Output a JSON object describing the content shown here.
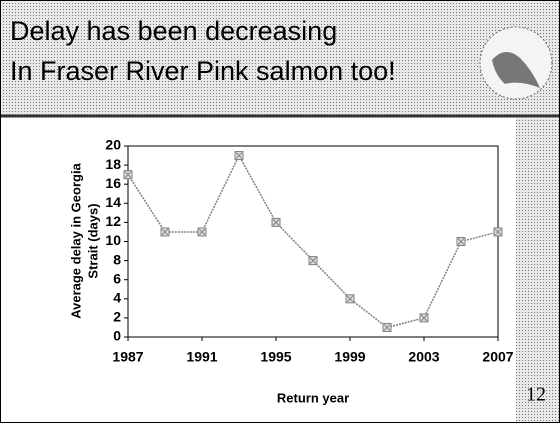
{
  "slide": {
    "title": [
      "Delay has been decreasing",
      "In Fraser River Pink salmon too!"
    ],
    "number": 12
  },
  "chart_data": {
    "type": "line",
    "ylabel": [
      "Average delay in Georgia",
      "Strait (days)"
    ],
    "xlabel": "Return year",
    "x": [
      1987,
      1989,
      1991,
      1993,
      1995,
      1997,
      1999,
      2001,
      2003,
      2005,
      2007
    ],
    "series": [
      {
        "name": "Average delay",
        "color": "#808080",
        "values": [
          17,
          11,
          11,
          19,
          12,
          8,
          4,
          1,
          2,
          10,
          11
        ]
      }
    ],
    "xlim": [
      1987,
      2007
    ],
    "xticks": [
      1987,
      1991,
      1995,
      1999,
      2003,
      2007
    ],
    "ylim": [
      0,
      20
    ],
    "yticks": [
      0,
      2,
      4,
      6,
      8,
      10,
      12,
      14,
      16,
      18,
      20
    ]
  }
}
